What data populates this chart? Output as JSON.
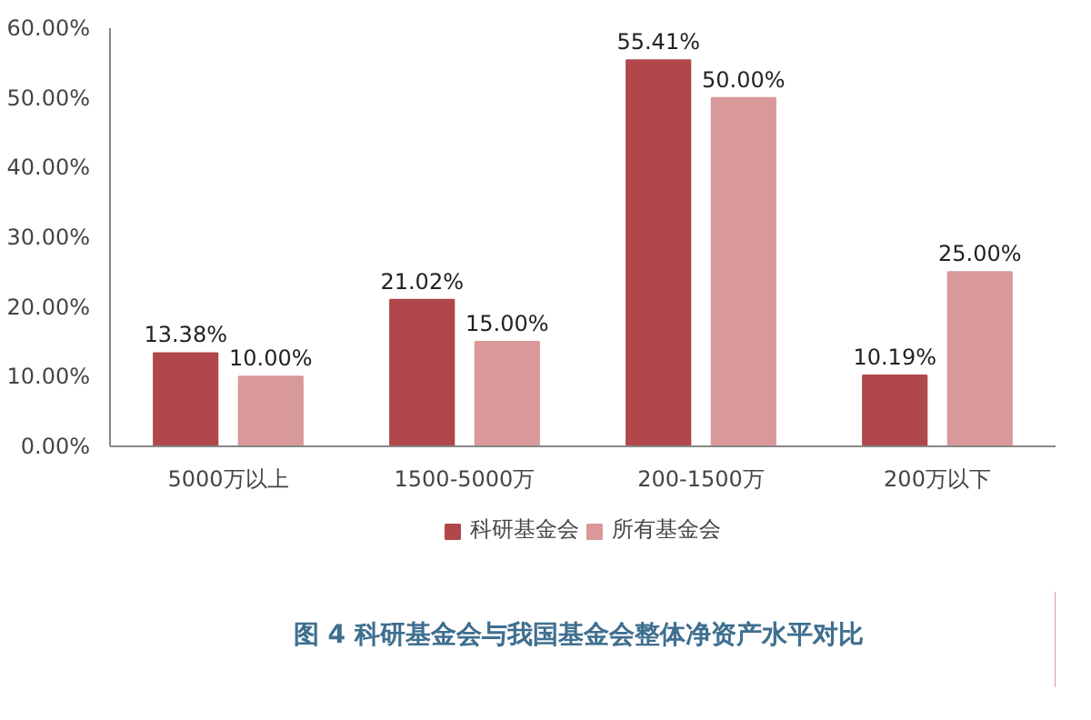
{
  "chart_data": {
    "type": "bar",
    "title": "图 4  科研基金会与我国基金会整体净资产水平对比",
    "categories": [
      "5000万以上",
      "1500-5000万",
      "200-1500万",
      "200万以下"
    ],
    "series": [
      {
        "name": "科研基金会",
        "color": "#b0474b",
        "values": [
          13.38,
          21.02,
          55.41,
          10.19
        ],
        "value_labels": [
          "13.38%",
          "21.02%",
          "55.41%",
          "10.19%"
        ]
      },
      {
        "name": "所有基金会",
        "color": "#d9999a",
        "values": [
          10.0,
          15.0,
          50.0,
          25.0
        ],
        "value_labels": [
          "10.00%",
          "15.00%",
          "50.00%",
          "25.00%"
        ]
      }
    ],
    "ylim": [
      0,
      60
    ],
    "yticks": [
      {
        "value": 0,
        "label": "0.00%"
      },
      {
        "value": 10,
        "label": "10.00%"
      },
      {
        "value": 20,
        "label": "20.00%"
      },
      {
        "value": 30,
        "label": "30.00%"
      },
      {
        "value": 40,
        "label": "40.00%"
      },
      {
        "value": 50,
        "label": "50.00%"
      },
      {
        "value": 60,
        "label": "60.00%"
      }
    ],
    "grid": false,
    "legend": "bottom"
  }
}
